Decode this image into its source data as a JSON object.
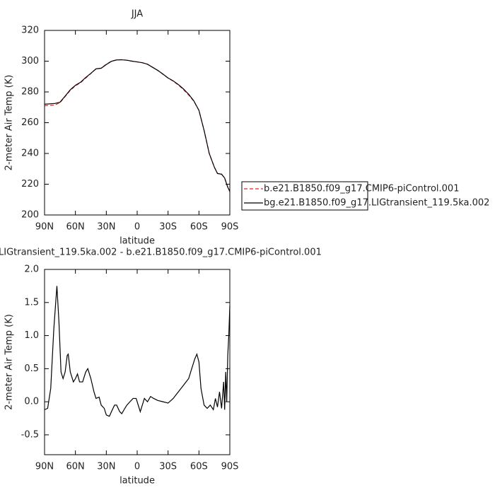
{
  "chart_data": [
    {
      "type": "line",
      "title": "JJA",
      "ylabel": "2-meter Air Temp (K)",
      "xlabel": "latitude",
      "x": [
        90,
        80,
        75,
        70,
        65,
        60,
        55,
        50,
        45,
        40,
        35,
        30,
        25,
        20,
        15,
        10,
        5,
        0,
        -5,
        -10,
        -15,
        -20,
        -25,
        -30,
        -35,
        -40,
        -45,
        -50,
        -55,
        -60,
        -65,
        -70,
        -75,
        -78,
        -82,
        -85,
        -88,
        -90
      ],
      "xlim": [
        90,
        -90
      ],
      "xticks": [
        {
          "value": 90,
          "label": "90N"
        },
        {
          "value": 60,
          "label": "60N"
        },
        {
          "value": 30,
          "label": "30N"
        },
        0,
        {
          "value": -30,
          "label": "30S"
        },
        {
          "value": -60,
          "label": "60S"
        },
        {
          "value": -90,
          "label": "90S"
        }
      ],
      "ylim": [
        200,
        320
      ],
      "yticks": [
        200,
        220,
        240,
        260,
        280,
        300,
        320
      ],
      "legend": "right",
      "series": [
        {
          "name": "b.e21.B1850.f09_g17.CMIP6-piControl.001",
          "color": "#e8202a",
          "dashed": true,
          "values": [
            271,
            271.5,
            273,
            277,
            281,
            284,
            286,
            289,
            292,
            295,
            295.5,
            298,
            300,
            300.8,
            301,
            300.6,
            300,
            299.5,
            299,
            298,
            296,
            294,
            291.5,
            289,
            287,
            284.5,
            281.5,
            278,
            274,
            268,
            255,
            240,
            231,
            227,
            226.5,
            224,
            218,
            215
          ]
        },
        {
          "name": "bg.e21.B1850.f09_g17.LIGtransient_119.5ka.002",
          "color": "#000000",
          "dashed": false,
          "values": [
            272,
            272.5,
            273.3,
            277.3,
            281.4,
            284.3,
            286.3,
            289.4,
            292.1,
            295,
            295.4,
            297.8,
            299.9,
            300.8,
            300.9,
            300.6,
            300,
            299.5,
            299,
            298,
            296,
            294,
            291.6,
            289.1,
            287.2,
            284.8,
            281.9,
            278.5,
            274.2,
            268,
            255,
            240,
            231,
            227,
            226.5,
            224,
            218,
            215.5
          ]
        }
      ]
    },
    {
      "type": "line",
      "title": "LIGtransient_119.5ka.002 - b.e21.B1850.f09_g17.CMIP6-piControl.001",
      "ylabel": "2-meter Air Temp (K)",
      "xlabel": "latitude",
      "x": [
        90,
        87,
        84,
        81,
        78,
        76,
        74,
        72,
        70,
        68,
        67,
        65,
        62,
        60,
        58,
        56,
        53,
        50,
        48,
        45,
        42,
        40,
        37,
        35,
        32,
        30,
        27,
        25,
        22,
        20,
        17,
        15,
        12,
        10,
        7,
        4,
        1,
        0,
        -3,
        -5,
        -7,
        -10,
        -13,
        -16,
        -20,
        -25,
        -30,
        -35,
        -40,
        -45,
        -50,
        -53,
        -56,
        -58,
        -60,
        -62,
        -65,
        -68,
        -71,
        -74,
        -76,
        -78,
        -80,
        -82,
        -84,
        -85,
        -86,
        -87,
        -88,
        -89,
        -90
      ],
      "xlim": [
        90,
        -90
      ],
      "xticks": [
        {
          "value": 90,
          "label": "90N"
        },
        {
          "value": 60,
          "label": "60N"
        },
        {
          "value": 30,
          "label": "30N"
        },
        0,
        {
          "value": -30,
          "label": "30S"
        },
        {
          "value": -60,
          "label": "60S"
        },
        {
          "value": -90,
          "label": "90S"
        }
      ],
      "ylim": [
        -0.8,
        2.0
      ],
      "yticks": [
        -0.5,
        {
          "value": 0,
          "label": "0.0"
        },
        0.5,
        {
          "value": 1,
          "label": "1.0"
        },
        1.5,
        {
          "value": 2,
          "label": "2.0"
        }
      ],
      "series": [
        {
          "color": "#000000",
          "values": [
            -0.12,
            -0.1,
            0.2,
            1.1,
            1.75,
            1.2,
            0.45,
            0.35,
            0.45,
            0.7,
            0.72,
            0.45,
            0.3,
            0.35,
            0.42,
            0.3,
            0.3,
            0.45,
            0.5,
            0.35,
            0.15,
            0.05,
            0.07,
            -0.05,
            -0.1,
            -0.2,
            -0.22,
            -0.15,
            -0.05,
            -0.05,
            -0.15,
            -0.18,
            -0.1,
            -0.05,
            0,
            0.05,
            0.05,
            0,
            -0.15,
            -0.05,
            0.05,
            0,
            0.08,
            0.05,
            0.02,
            0,
            -0.02,
            0.05,
            0.15,
            0.25,
            0.35,
            0.5,
            0.65,
            0.72,
            0.6,
            0.2,
            -0.05,
            -0.1,
            -0.05,
            -0.12,
            0.05,
            -0.08,
            0.15,
            -0.1,
            0.3,
            -0.12,
            0.45,
            0,
            0.7,
            1,
            1.45
          ]
        }
      ]
    }
  ]
}
